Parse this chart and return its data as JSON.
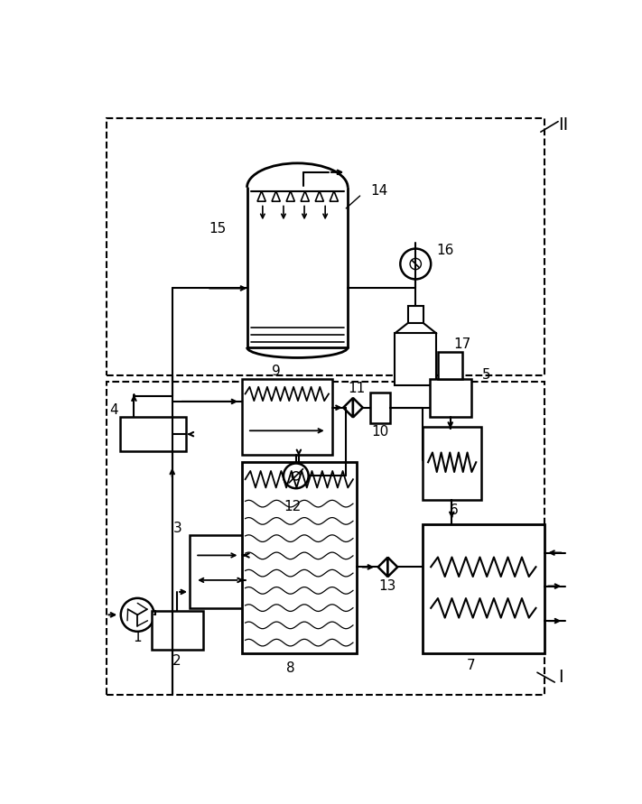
{
  "fig_width": 7.11,
  "fig_height": 8.91,
  "dpi": 100,
  "bg_color": "#ffffff",
  "lc": "#000000"
}
